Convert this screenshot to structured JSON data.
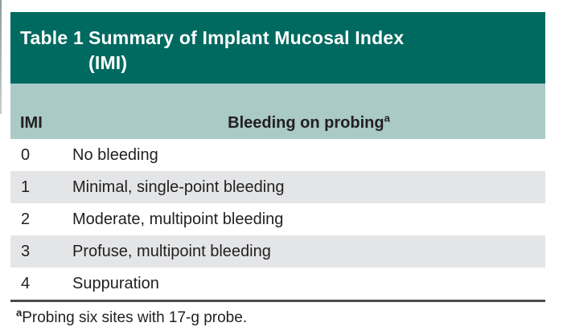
{
  "table": {
    "label": "Table 1",
    "title_line1": "Summary of Implant Mucosal Index",
    "title_line2": "(IMI)",
    "columns": {
      "imi": "IMI",
      "description": "Bleeding on probing",
      "description_superscript": "a"
    },
    "rows": [
      {
        "imi": "0",
        "description": "No bleeding"
      },
      {
        "imi": "1",
        "description": "Minimal, single-point bleeding"
      },
      {
        "imi": "2",
        "description": "Moderate, multipoint bleeding"
      },
      {
        "imi": "3",
        "description": "Profuse, multipoint bleeding"
      },
      {
        "imi": "4",
        "description": "Suppuration"
      }
    ],
    "footnote": {
      "superscript": "a",
      "text": "Probing six sites with 17-g probe."
    }
  },
  "colors": {
    "header_bg": "#006a60",
    "subheader_bg": "#a9cac6",
    "row_alt_bg": "#e4e5e6",
    "row_bg": "#ffffff",
    "title_text": "#ffffff",
    "body_text": "#231f20",
    "rule": "#4a4a4a"
  }
}
